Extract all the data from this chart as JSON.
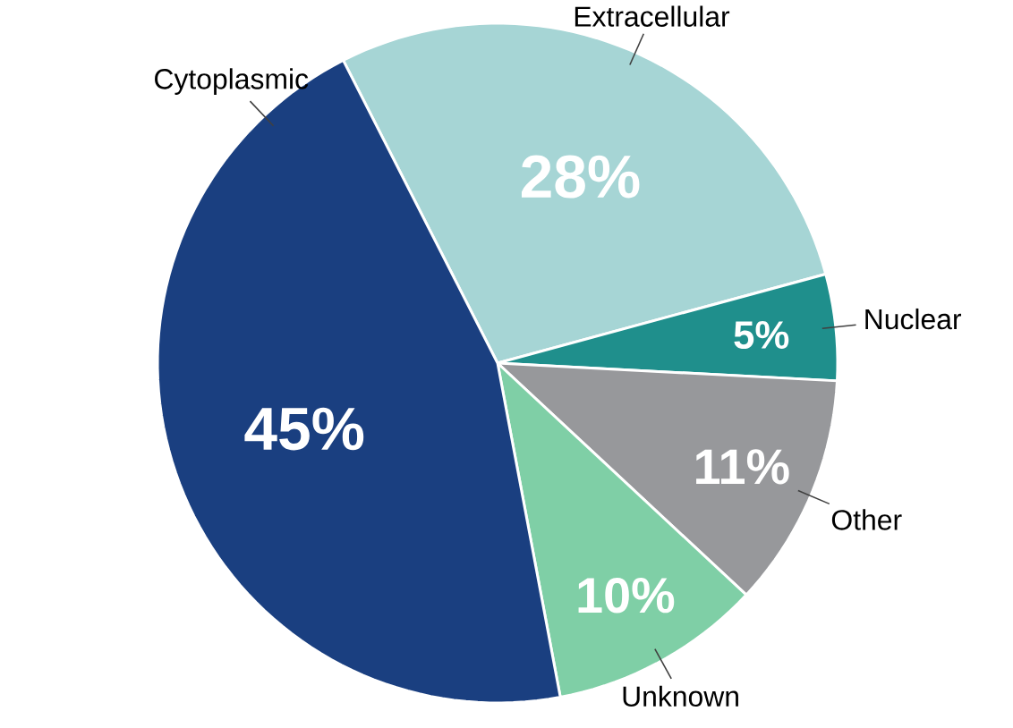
{
  "chart_data": {
    "type": "pie",
    "categories": [
      "Extracellular",
      "Nuclear",
      "Other",
      "Unknown",
      "Cytoplasmic"
    ],
    "values": [
      28,
      5,
      11,
      10,
      45
    ],
    "colors": [
      "#a6d5d5",
      "#1f8f8c",
      "#97989b",
      "#7fcfa6",
      "#1a3f80"
    ],
    "value_labels": [
      "28%",
      "5%",
      "11%",
      "10%",
      "45%"
    ]
  }
}
